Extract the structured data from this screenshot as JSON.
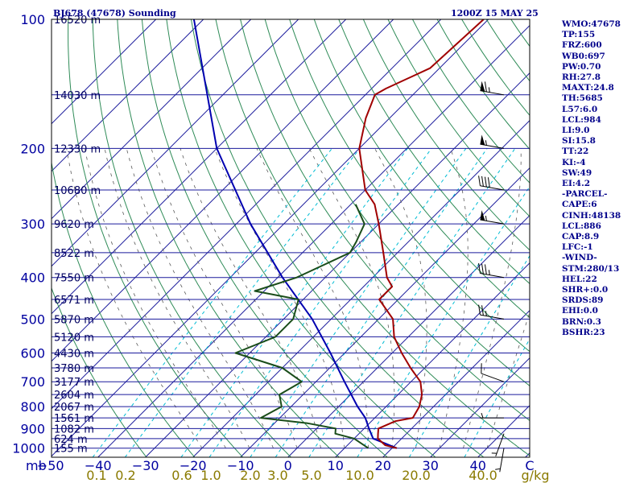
{
  "header": {
    "station": "BJ678 (47678) Sounding",
    "time": "1200Z 15 MAY 25"
  },
  "indices": [
    "WMO:47678",
    "TP:155",
    "FRZ:600",
    "WB0:697",
    "PW:0.70",
    "RH:27.8",
    "MAXT:24.8",
    "TH:5685",
    "L57:6.0",
    "LCL:984",
    "LI:9.0",
    "SI:15.8",
    "TT:22",
    "KI:-4",
    "SW:49",
    "EI:4.2",
    "-PARCEL-",
    "CAPE:6",
    "CINH:48138",
    "LCL:886",
    "CAP:8.9",
    "LFC:-1",
    "-WIND-",
    "STM:280/13",
    "HEL:22",
    "SHR+:0.0",
    "SRDS:89",
    "EHI:0.0",
    "BRN:0.3",
    "BSHR:23"
  ],
  "colors": {
    "isobar": "#1a1a9c",
    "isotherm": "#1a1a9c",
    "dry_adiabat": "#2e8b57",
    "moist_adiabat": "#5a5a5a",
    "mixing_ratio": "#00bcd4",
    "temperature": "#a00000",
    "dewpoint": "#1a4d1a",
    "parcel": "#0000b0",
    "wind_barb": "#000000"
  },
  "chart_data": {
    "type": "skew-t",
    "pressure_ticks": [
      100,
      200,
      300,
      400,
      500,
      600,
      700,
      800,
      900,
      1000
    ],
    "pressure_range_hpa": [
      1050,
      100
    ],
    "temperature_ticks": [
      -50,
      -40,
      -30,
      -20,
      -10,
      0,
      10,
      20,
      30,
      40,
      "C"
    ],
    "mixing_ratio_labels": [
      "0.1",
      "0.2",
      "0.6",
      "1.0",
      "2.0",
      "3.0",
      "5.0",
      "10.0",
      "20.0",
      "40.0",
      "g/kg"
    ],
    "pressure_unit": "mb",
    "height_labels": [
      {
        "p": 100,
        "label": "16520 m"
      },
      {
        "p": 150,
        "label": "14030 m"
      },
      {
        "p": 200,
        "label": "12330 m"
      },
      {
        "p": 250,
        "label": "10680 m"
      },
      {
        "p": 300,
        "label": "9620 m"
      },
      {
        "p": 350,
        "label": "8522 m"
      },
      {
        "p": 400,
        "label": "7550 m"
      },
      {
        "p": 450,
        "label": "6571 m"
      },
      {
        "p": 500,
        "label": "5870 m"
      },
      {
        "p": 550,
        "label": "5120 m"
      },
      {
        "p": 600,
        "label": "4430 m"
      },
      {
        "p": 650,
        "label": "3780 m"
      },
      {
        "p": 700,
        "label": "3177 m"
      },
      {
        "p": 750,
        "label": "2604 m"
      },
      {
        "p": 800,
        "label": "2067 m"
      },
      {
        "p": 850,
        "label": "1561 m"
      },
      {
        "p": 900,
        "label": "1082 m"
      },
      {
        "p": 950,
        "label": "624 m"
      },
      {
        "p": 1000,
        "label": "155 m"
      }
    ],
    "temperature_profile": [
      {
        "p": 1000,
        "t": 21
      },
      {
        "p": 985,
        "t": 18
      },
      {
        "p": 950,
        "t": 15
      },
      {
        "p": 925,
        "t": 14
      },
      {
        "p": 900,
        "t": 13
      },
      {
        "p": 865,
        "t": 15
      },
      {
        "p": 850,
        "t": 18
      },
      {
        "p": 800,
        "t": 17
      },
      {
        "p": 750,
        "t": 15
      },
      {
        "p": 700,
        "t": 12
      },
      {
        "p": 650,
        "t": 7
      },
      {
        "p": 600,
        "t": 2
      },
      {
        "p": 550,
        "t": -3
      },
      {
        "p": 500,
        "t": -7
      },
      {
        "p": 450,
        "t": -14
      },
      {
        "p": 420,
        "t": -14
      },
      {
        "p": 400,
        "t": -17
      },
      {
        "p": 350,
        "t": -23
      },
      {
        "p": 300,
        "t": -30
      },
      {
        "p": 270,
        "t": -35
      },
      {
        "p": 250,
        "t": -40
      },
      {
        "p": 200,
        "t": -50
      },
      {
        "p": 170,
        "t": -55
      },
      {
        "p": 150,
        "t": -58
      },
      {
        "p": 145,
        "t": -57
      },
      {
        "p": 130,
        "t": -52
      },
      {
        "p": 100,
        "t": -51
      }
    ],
    "dewpoint_profile": [
      {
        "p": 1000,
        "t": 15
      },
      {
        "p": 950,
        "t": 10
      },
      {
        "p": 925,
        "t": 5
      },
      {
        "p": 900,
        "t": 4
      },
      {
        "p": 875,
        "t": -3
      },
      {
        "p": 850,
        "t": -14
      },
      {
        "p": 800,
        "t": -12
      },
      {
        "p": 750,
        "t": -15
      },
      {
        "p": 700,
        "t": -13
      },
      {
        "p": 650,
        "t": -20
      },
      {
        "p": 600,
        "t": -33
      },
      {
        "p": 550,
        "t": -28
      },
      {
        "p": 500,
        "t": -28
      },
      {
        "p": 450,
        "t": -31
      },
      {
        "p": 430,
        "t": -42
      },
      {
        "p": 400,
        "t": -36
      },
      {
        "p": 350,
        "t": -30
      },
      {
        "p": 330,
        "t": -31
      },
      {
        "p": 300,
        "t": -33
      },
      {
        "p": 270,
        "t": -39
      }
    ],
    "parcel_profile": [
      {
        "p": 1000,
        "t": 21
      },
      {
        "p": 950,
        "t": 14
      },
      {
        "p": 900,
        "t": 11
      },
      {
        "p": 850,
        "t": 8
      },
      {
        "p": 800,
        "t": 4
      },
      {
        "p": 700,
        "t": -4
      },
      {
        "p": 600,
        "t": -13
      },
      {
        "p": 500,
        "t": -24
      },
      {
        "p": 400,
        "t": -39
      },
      {
        "p": 300,
        "t": -57
      },
      {
        "p": 200,
        "t": -80
      },
      {
        "p": 100,
        "t": -112
      }
    ],
    "isotherm_range_c": [
      -120,
      50
    ],
    "isotherm_step_c": 10,
    "dry_adiabat_range_k": [
      240,
      470
    ],
    "dry_adiabat_step_k": 10,
    "moist_adiabat_start_c": [
      -20,
      -15,
      -10,
      -5,
      0,
      5,
      10,
      15,
      20,
      25,
      30,
      35,
      40
    ],
    "mixing_ratio_lines_gkg": [
      0.1,
      0.2,
      0.6,
      1.0,
      2.0,
      3.0,
      5.0,
      10.0,
      20.0,
      40.0
    ],
    "wind_barbs": [
      {
        "p": 150,
        "dir": 280,
        "spd": 65
      },
      {
        "p": 200,
        "dir": 280,
        "spd": 55
      },
      {
        "p": 250,
        "dir": 280,
        "spd": 40
      },
      {
        "p": 300,
        "dir": 280,
        "spd": 55
      },
      {
        "p": 400,
        "dir": 280,
        "spd": 35
      },
      {
        "p": 500,
        "dir": 280,
        "spd": 25
      },
      {
        "p": 700,
        "dir": 290,
        "spd": 10
      },
      {
        "p": 850,
        "dir": 270,
        "spd": 5
      },
      {
        "p": 925,
        "dir": 200,
        "spd": 5
      },
      {
        "p": 1000,
        "dir": 190,
        "spd": 5
      }
    ]
  }
}
